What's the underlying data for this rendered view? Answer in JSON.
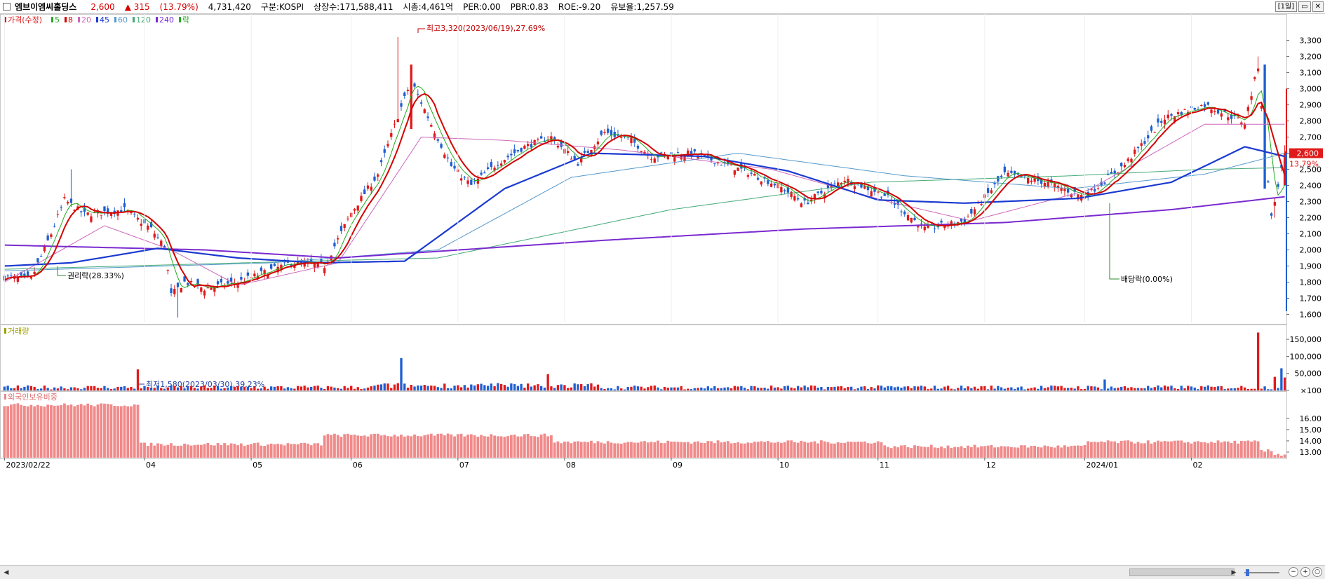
{
  "header": {
    "name": "엠브이엠씨홀딩스",
    "price": "2,600",
    "change": "▲ 315",
    "change_pct": "(13.79%)",
    "volume": "4,731,420",
    "market": "구분:KOSPI",
    "shares": "상장수:171,588,411",
    "mktcap": "시총:4,461억",
    "per": "PER:0.00",
    "pbr": "PBR:0.83",
    "roe": "ROE:-9.20",
    "float": "유보율:1,257.59",
    "period_btn": "[1일]",
    "accent_red": "#d40000",
    "accent_blue": "#1f5fd0"
  },
  "legend": {
    "price_label": "가격(수정)",
    "ma": [
      {
        "label": "5",
        "color": "#22aa22"
      },
      {
        "label": "8",
        "color": "#d40000"
      },
      {
        "label": "20",
        "color": "#cc66bb"
      },
      {
        "label": "45",
        "color": "#1a3ad0"
      },
      {
        "label": "60",
        "color": "#5599cc"
      },
      {
        "label": "120",
        "color": "#44aa77"
      },
      {
        "label": "240",
        "color": "#7a2ad0"
      }
    ],
    "drop_label": "락",
    "volume_label": "거래량",
    "foreign_label": "외국인보유비중"
  },
  "annotations": {
    "high": "최고3,320(2023/06/19),27.69%",
    "low": "최저1,580(2023/03/30),39.23%",
    "rights": "권리락(28.33%)",
    "dividend": "배당락(0.00%)",
    "current_price": "2,600",
    "current_pct": "13.79%"
  },
  "chart_data": {
    "type": "candlestick",
    "x_labels": [
      "2023/02/22",
      "04",
      "05",
      "06",
      "07",
      "08",
      "09",
      "10",
      "11",
      "12",
      "2024/01",
      "02"
    ],
    "price_axis": {
      "ylim": [
        1550,
        3420
      ],
      "ticks": [
        1600,
        1700,
        1800,
        1900,
        2000,
        2100,
        2200,
        2300,
        2400,
        2500,
        2600,
        2700,
        2800,
        2900,
        3000,
        3100,
        3200,
        3300
      ]
    },
    "volume_axis": {
      "ylim": [
        0,
        175000
      ],
      "ticks": [
        100,
        50000,
        100000,
        150000
      ],
      "tick_labels": [
        "×100",
        "50,000",
        "100,000",
        "150,000"
      ]
    },
    "foreign_axis": {
      "ylim": [
        12.5,
        17.8
      ],
      "ticks": [
        13.0,
        14.0,
        15.0,
        16.0
      ]
    },
    "price_anchors": [
      [
        0,
        1830
      ],
      [
        8,
        1820
      ],
      [
        14,
        2100
      ],
      [
        18,
        2310
      ],
      [
        24,
        2220
      ],
      [
        36,
        2250
      ],
      [
        44,
        2130
      ],
      [
        48,
        2020
      ],
      [
        50,
        1720
      ],
      [
        54,
        1800
      ],
      [
        60,
        1760
      ],
      [
        70,
        1800
      ],
      [
        86,
        1920
      ],
      [
        96,
        1900
      ],
      [
        104,
        2230
      ],
      [
        112,
        2470
      ],
      [
        118,
        2830
      ],
      [
        122,
        3050
      ],
      [
        128,
        2780
      ],
      [
        134,
        2520
      ],
      [
        140,
        2400
      ],
      [
        148,
        2540
      ],
      [
        156,
        2640
      ],
      [
        164,
        2700
      ],
      [
        172,
        2540
      ],
      [
        180,
        2730
      ],
      [
        188,
        2680
      ],
      [
        194,
        2580
      ],
      [
        206,
        2600
      ],
      [
        222,
        2490
      ],
      [
        232,
        2400
      ],
      [
        240,
        2290
      ],
      [
        252,
        2440
      ],
      [
        264,
        2340
      ],
      [
        276,
        2130
      ],
      [
        288,
        2180
      ],
      [
        300,
        2470
      ],
      [
        312,
        2420
      ],
      [
        324,
        2330
      ],
      [
        336,
        2530
      ],
      [
        348,
        2820
      ],
      [
        360,
        2900
      ],
      [
        372,
        2790
      ],
      [
        376,
        3140
      ],
      [
        380,
        2200
      ],
      [
        384,
        2600
      ]
    ],
    "moving_average_anchors": {
      "ma45": [
        [
          0,
          1900
        ],
        [
          20,
          1920
        ],
        [
          46,
          2010
        ],
        [
          70,
          1950
        ],
        [
          94,
          1920
        ],
        [
          120,
          1930
        ],
        [
          150,
          2380
        ],
        [
          176,
          2600
        ],
        [
          210,
          2580
        ],
        [
          235,
          2490
        ],
        [
          262,
          2310
        ],
        [
          288,
          2290
        ],
        [
          322,
          2320
        ],
        [
          350,
          2420
        ],
        [
          372,
          2640
        ],
        [
          384,
          2580
        ]
      ],
      "ma240": [
        [
          0,
          2030
        ],
        [
          60,
          2000
        ],
        [
          100,
          1950
        ],
        [
          180,
          2060
        ],
        [
          240,
          2130
        ],
        [
          300,
          2170
        ],
        [
          350,
          2250
        ],
        [
          384,
          2330
        ]
      ],
      "ma120": [
        [
          0,
          1880
        ],
        [
          90,
          1930
        ],
        [
          130,
          1950
        ],
        [
          200,
          2250
        ],
        [
          260,
          2420
        ],
        [
          320,
          2460
        ],
        [
          360,
          2500
        ],
        [
          384,
          2510
        ]
      ],
      "ma60": [
        [
          0,
          1870
        ],
        [
          80,
          1920
        ],
        [
          130,
          2000
        ],
        [
          170,
          2450
        ],
        [
          220,
          2600
        ],
        [
          270,
          2460
        ],
        [
          320,
          2380
        ],
        [
          360,
          2470
        ],
        [
          384,
          2600
        ]
      ],
      "ma20": [
        [
          0,
          1800
        ],
        [
          30,
          2150
        ],
        [
          50,
          2000
        ],
        [
          70,
          1780
        ],
        [
          100,
          1920
        ],
        [
          125,
          2700
        ],
        [
          150,
          2680
        ],
        [
          185,
          2620
        ],
        [
          230,
          2500
        ],
        [
          265,
          2300
        ],
        [
          290,
          2180
        ],
        [
          325,
          2370
        ],
        [
          360,
          2780
        ],
        [
          384,
          2780
        ]
      ]
    },
    "volume_spikes": [
      [
        40,
        62000
      ],
      [
        119,
        95000
      ],
      [
        163,
        48000
      ],
      [
        330,
        32000
      ],
      [
        376,
        170000
      ],
      [
        381,
        40000
      ],
      [
        383,
        65000
      ],
      [
        384,
        38000
      ]
    ],
    "foreign_segments": [
      [
        0,
        40,
        17.2
      ],
      [
        41,
        95,
        13.7
      ],
      [
        96,
        164,
        14.5
      ],
      [
        165,
        263,
        13.9
      ],
      [
        264,
        324,
        13.5
      ],
      [
        325,
        376,
        13.9
      ],
      [
        377,
        380,
        13.1
      ],
      [
        381,
        384,
        12.8
      ]
    ]
  }
}
